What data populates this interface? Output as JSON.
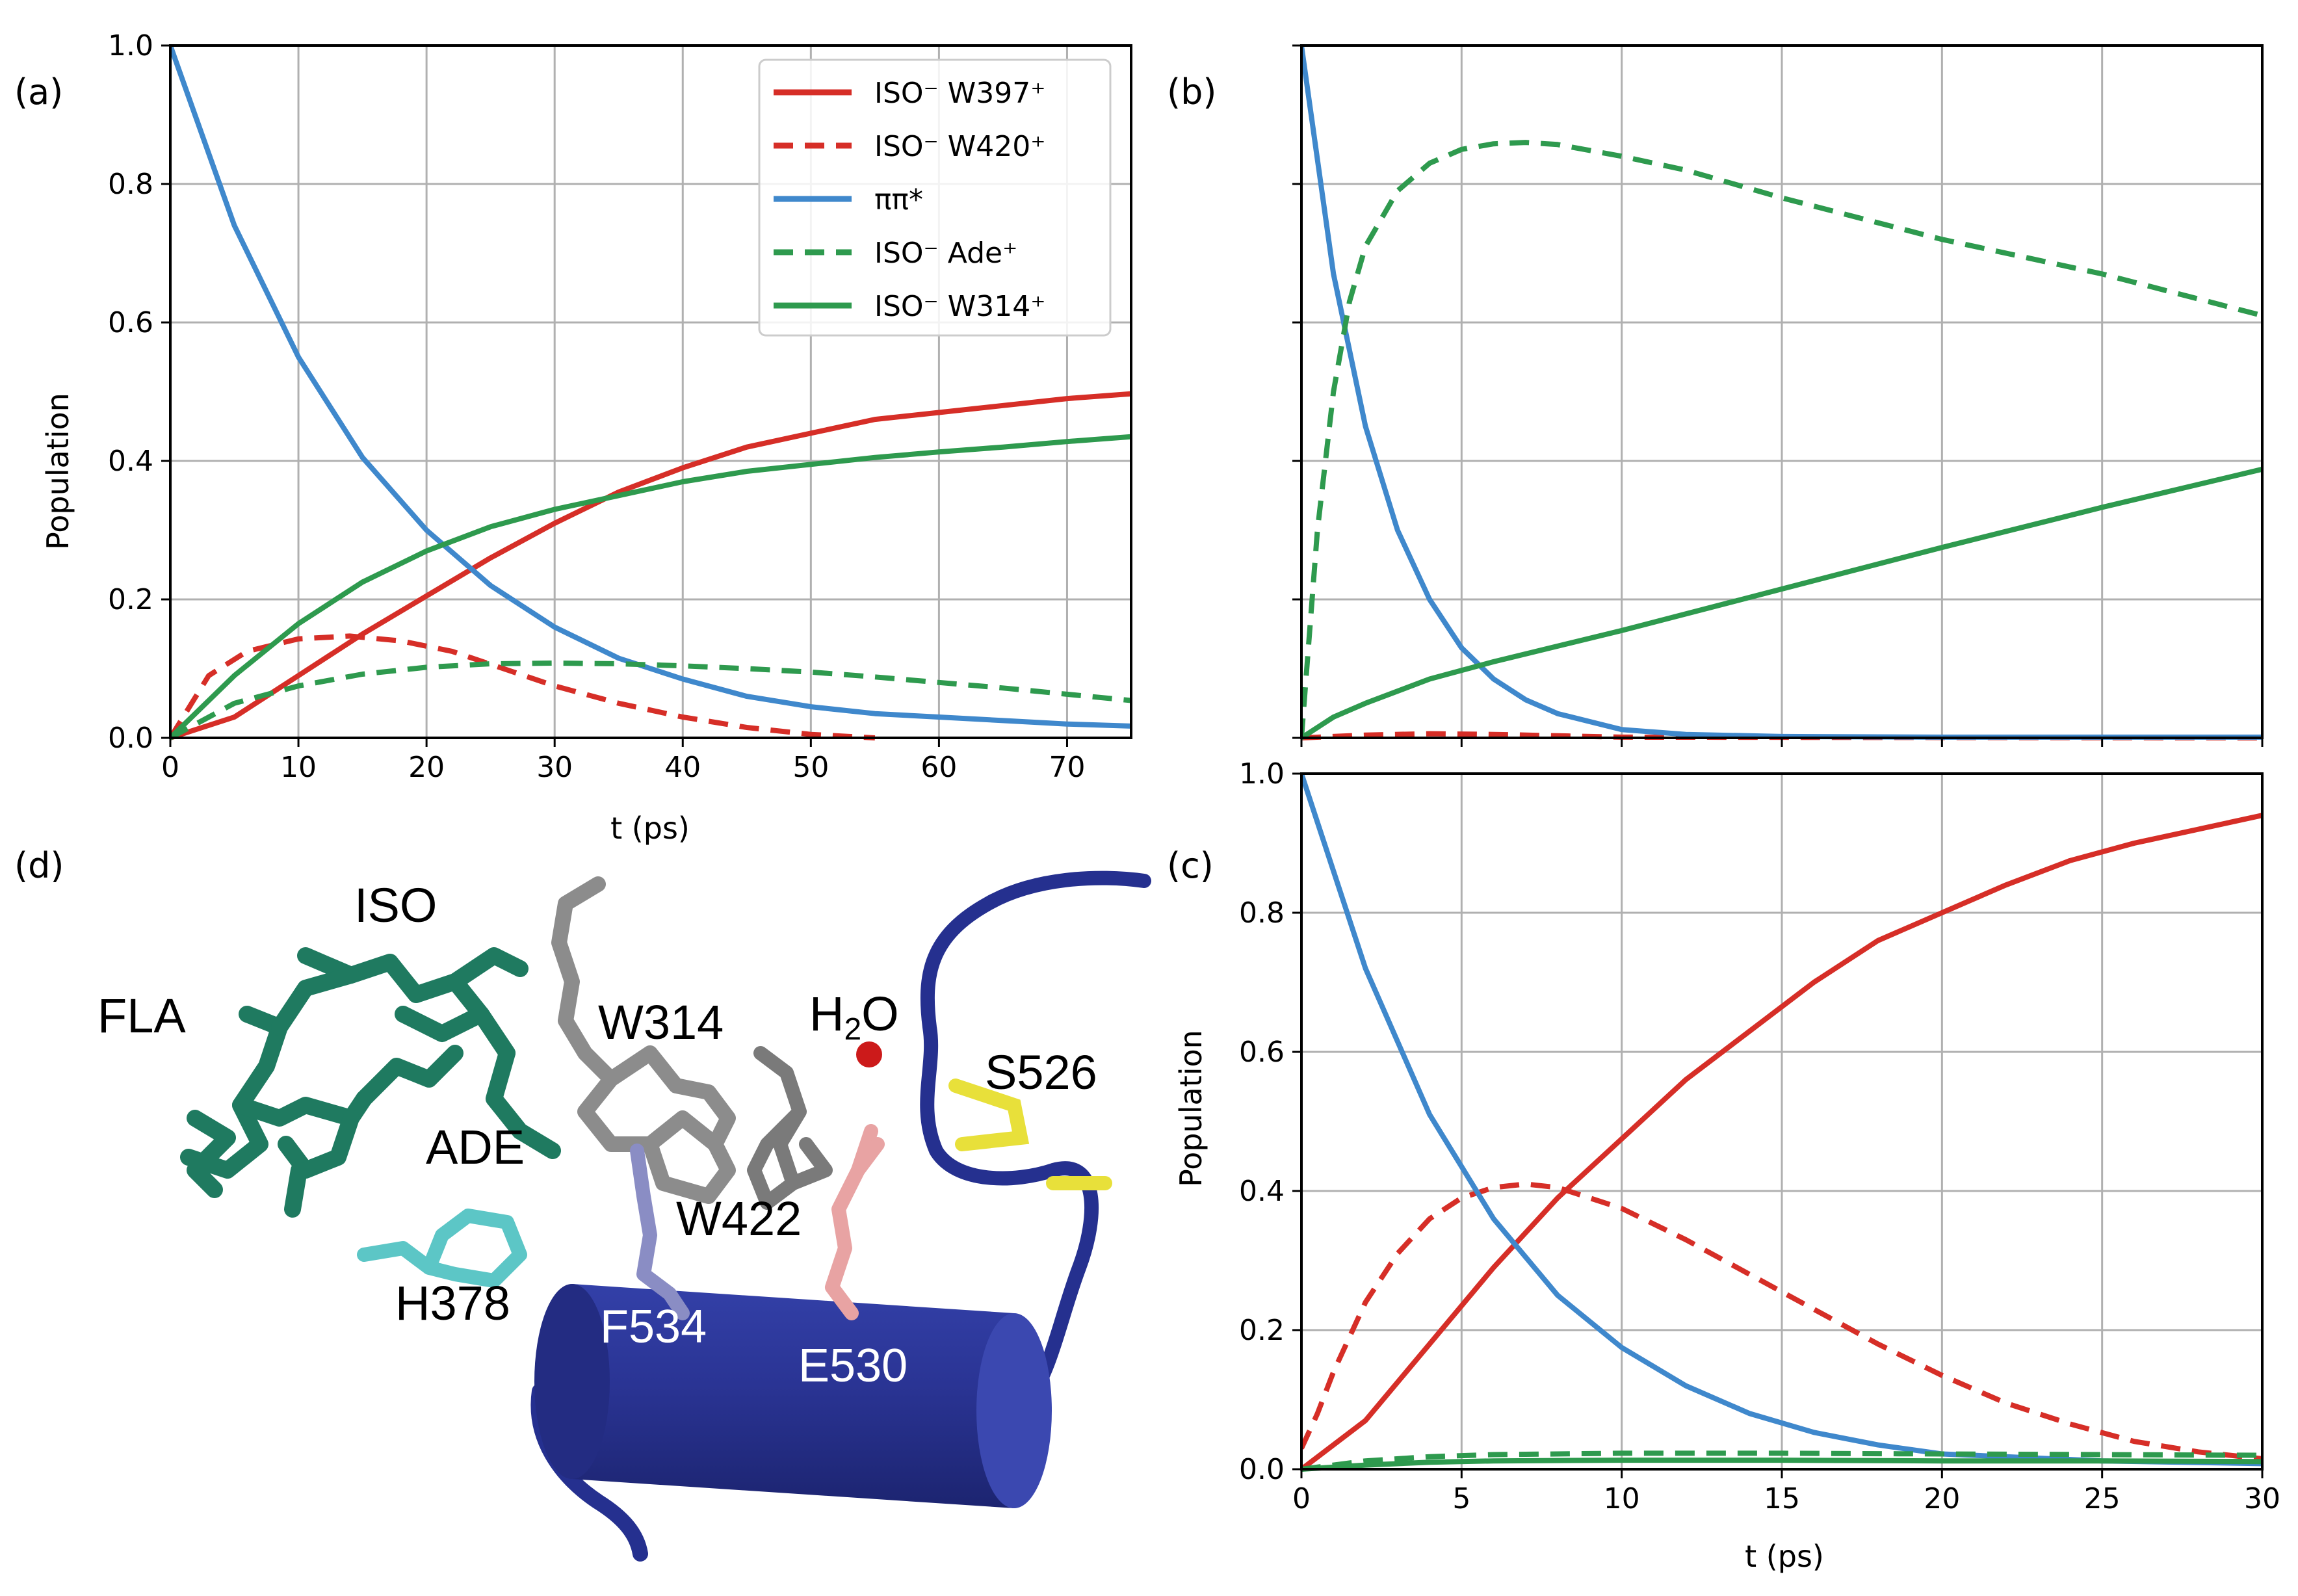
{
  "colors": {
    "red": "#d62e27",
    "blue": "#3f88cc",
    "green": "#2e9a4e",
    "grid": "#b0b0b0",
    "helix": "#25308f",
    "teal": "#1f7a60",
    "cyan": "#5cc6c6",
    "gray": "#8c8c8c",
    "lavender": "#8a8dc4",
    "salmon": "#e8a3a3",
    "yellow": "#e8e03a",
    "water": "#cc1a1a"
  },
  "legend": {
    "entries": [
      {
        "label": "ISO⁻ W397⁺",
        "color": "#d62e27",
        "dashed": false
      },
      {
        "label": "ISO⁻ W420⁺",
        "color": "#d62e27",
        "dashed": true
      },
      {
        "label": "ππ*",
        "color": "#3f88cc",
        "dashed": false
      },
      {
        "label": "ISO⁻ Ade⁺",
        "color": "#2e9a4e",
        "dashed": true
      },
      {
        "label": "ISO⁻ W314⁺",
        "color": "#2e9a4e",
        "dashed": false
      }
    ]
  },
  "chart_data": [
    {
      "panel": "(a)",
      "type": "line",
      "xlabel": "t (ps)",
      "ylabel": "Population",
      "xlim": [
        0,
        75
      ],
      "ylim": [
        0,
        1.0
      ],
      "xticks": [
        0,
        10,
        20,
        30,
        40,
        50,
        60,
        70
      ],
      "yticks": [
        "0.0",
        "0.2",
        "0.4",
        "0.6",
        "0.8",
        "1.0"
      ],
      "grid": true,
      "legend_placement": "top-right",
      "series": [
        {
          "name": "ISO⁻ W397⁺",
          "color": "red",
          "dash": false,
          "x": [
            0,
            5,
            10,
            15,
            20,
            25,
            30,
            35,
            40,
            45,
            50,
            55,
            60,
            65,
            70,
            75
          ],
          "y": [
            0.0,
            0.03,
            0.09,
            0.15,
            0.205,
            0.26,
            0.31,
            0.355,
            0.39,
            0.42,
            0.44,
            0.46,
            0.47,
            0.48,
            0.49,
            0.497
          ]
        },
        {
          "name": "ISO⁻ W420⁺",
          "color": "red",
          "dash": true,
          "x": [
            0,
            3,
            6,
            10,
            14,
            18,
            22,
            26,
            30,
            35,
            40,
            45,
            50,
            55
          ],
          "y": [
            0.0,
            0.09,
            0.125,
            0.143,
            0.147,
            0.14,
            0.125,
            0.1,
            0.075,
            0.05,
            0.03,
            0.015,
            0.005,
            0.0
          ]
        },
        {
          "name": "ππ*",
          "color": "blue",
          "dash": false,
          "x": [
            0,
            5,
            10,
            15,
            20,
            25,
            30,
            35,
            40,
            45,
            50,
            55,
            60,
            65,
            70,
            75
          ],
          "y": [
            1.0,
            0.74,
            0.55,
            0.405,
            0.3,
            0.22,
            0.16,
            0.115,
            0.085,
            0.06,
            0.045,
            0.035,
            0.03,
            0.025,
            0.02,
            0.017
          ]
        },
        {
          "name": "ISO⁻ Ade⁺",
          "color": "green",
          "dash": true,
          "x": [
            0,
            5,
            10,
            15,
            20,
            25,
            30,
            35,
            40,
            45,
            50,
            55,
            60,
            65,
            70,
            75
          ],
          "y": [
            0.0,
            0.05,
            0.075,
            0.092,
            0.102,
            0.107,
            0.108,
            0.107,
            0.104,
            0.1,
            0.095,
            0.088,
            0.08,
            0.072,
            0.063,
            0.054
          ]
        },
        {
          "name": "ISO⁻ W314⁺",
          "color": "green",
          "dash": false,
          "x": [
            0,
            5,
            10,
            15,
            20,
            25,
            30,
            35,
            40,
            45,
            50,
            55,
            60,
            65,
            70,
            75
          ],
          "y": [
            0.0,
            0.09,
            0.165,
            0.225,
            0.27,
            0.305,
            0.33,
            0.35,
            0.37,
            0.385,
            0.395,
            0.405,
            0.413,
            0.42,
            0.428,
            0.435
          ]
        }
      ]
    },
    {
      "panel": "(b)",
      "type": "line",
      "xlabel": "",
      "ylabel": "",
      "xlim": [
        0,
        30
      ],
      "ylim": [
        0,
        1.0
      ],
      "xticks": [
        0,
        5,
        10,
        15,
        20,
        25,
        30
      ],
      "yticks": [],
      "grid": true,
      "series": [
        {
          "color": "red",
          "dash": true,
          "x": [
            0,
            2,
            4,
            6,
            8,
            10,
            30
          ],
          "y": [
            0.0,
            0.004,
            0.006,
            0.005,
            0.003,
            0.001,
            0.0
          ]
        },
        {
          "color": "blue",
          "dash": false,
          "x": [
            0,
            1,
            2,
            3,
            4,
            5,
            6,
            7,
            8,
            10,
            12,
            15,
            20,
            30
          ],
          "y": [
            1.0,
            0.67,
            0.45,
            0.3,
            0.2,
            0.13,
            0.085,
            0.055,
            0.035,
            0.012,
            0.005,
            0.002,
            0.001,
            0.001
          ]
        },
        {
          "color": "green",
          "dash": true,
          "x": [
            0,
            0.5,
            1,
            1.5,
            2,
            3,
            4,
            5,
            6,
            7,
            8,
            10,
            12,
            15,
            20,
            25,
            30
          ],
          "y": [
            0.0,
            0.3,
            0.5,
            0.63,
            0.71,
            0.79,
            0.83,
            0.85,
            0.858,
            0.86,
            0.857,
            0.84,
            0.82,
            0.78,
            0.72,
            0.67,
            0.61
          ]
        },
        {
          "color": "green",
          "dash": false,
          "x": [
            0,
            1,
            2,
            4,
            6,
            10,
            15,
            20,
            25,
            30
          ],
          "y": [
            0.0,
            0.03,
            0.05,
            0.085,
            0.11,
            0.155,
            0.215,
            0.275,
            0.333,
            0.388
          ]
        }
      ]
    },
    {
      "panel": "(c)",
      "type": "line",
      "xlabel": "t (ps)",
      "ylabel": "Population",
      "xlim": [
        0,
        30
      ],
      "ylim": [
        0,
        1.0
      ],
      "xticks": [
        0,
        5,
        10,
        15,
        20,
        25,
        30
      ],
      "yticks": [
        "0.0",
        "0.2",
        "0.4",
        "0.6",
        "0.8",
        "1.0"
      ],
      "grid": true,
      "series": [
        {
          "color": "red",
          "dash": false,
          "x": [
            0,
            2,
            4,
            6,
            8,
            10,
            12,
            14,
            16,
            18,
            20,
            22,
            24,
            26,
            28,
            30
          ],
          "y": [
            0.0,
            0.07,
            0.18,
            0.29,
            0.39,
            0.475,
            0.56,
            0.63,
            0.7,
            0.76,
            0.8,
            0.84,
            0.875,
            0.9,
            0.92,
            0.94
          ]
        },
        {
          "color": "red",
          "dash": true,
          "x": [
            0,
            0.5,
            1,
            2,
            3,
            4,
            5,
            6,
            7,
            8,
            10,
            12,
            14,
            16,
            18,
            20,
            22,
            24,
            26,
            28,
            30
          ],
          "y": [
            0.03,
            0.08,
            0.14,
            0.24,
            0.31,
            0.36,
            0.39,
            0.405,
            0.41,
            0.405,
            0.375,
            0.33,
            0.28,
            0.23,
            0.18,
            0.135,
            0.095,
            0.065,
            0.04,
            0.025,
            0.015
          ]
        },
        {
          "color": "blue",
          "dash": false,
          "x": [
            0,
            2,
            4,
            6,
            8,
            10,
            12,
            14,
            16,
            18,
            20,
            25,
            30
          ],
          "y": [
            1.0,
            0.72,
            0.51,
            0.36,
            0.25,
            0.175,
            0.12,
            0.08,
            0.053,
            0.035,
            0.022,
            0.012,
            0.008
          ]
        },
        {
          "color": "green",
          "dash": true,
          "x": [
            0,
            2,
            4,
            6,
            10,
            15,
            20,
            25,
            30
          ],
          "y": [
            0.0,
            0.012,
            0.018,
            0.021,
            0.023,
            0.023,
            0.022,
            0.021,
            0.02
          ]
        },
        {
          "color": "green",
          "dash": false,
          "x": [
            0,
            2,
            4,
            6,
            10,
            15,
            20,
            25,
            30
          ],
          "y": [
            0.0,
            0.006,
            0.01,
            0.012,
            0.013,
            0.013,
            0.012,
            0.012,
            0.011
          ]
        }
      ]
    }
  ],
  "panel_d": {
    "letter": "(d)",
    "labels": {
      "iso": "ISO",
      "fla": "FLA",
      "w314": "W314",
      "h2o_main": "H",
      "h2o_sub": "2",
      "h2o_tail": "O",
      "s526": "S526",
      "ade": "ADE",
      "w422": "W422",
      "h378": "H378",
      "f534": "F534",
      "e530": "E530"
    }
  }
}
